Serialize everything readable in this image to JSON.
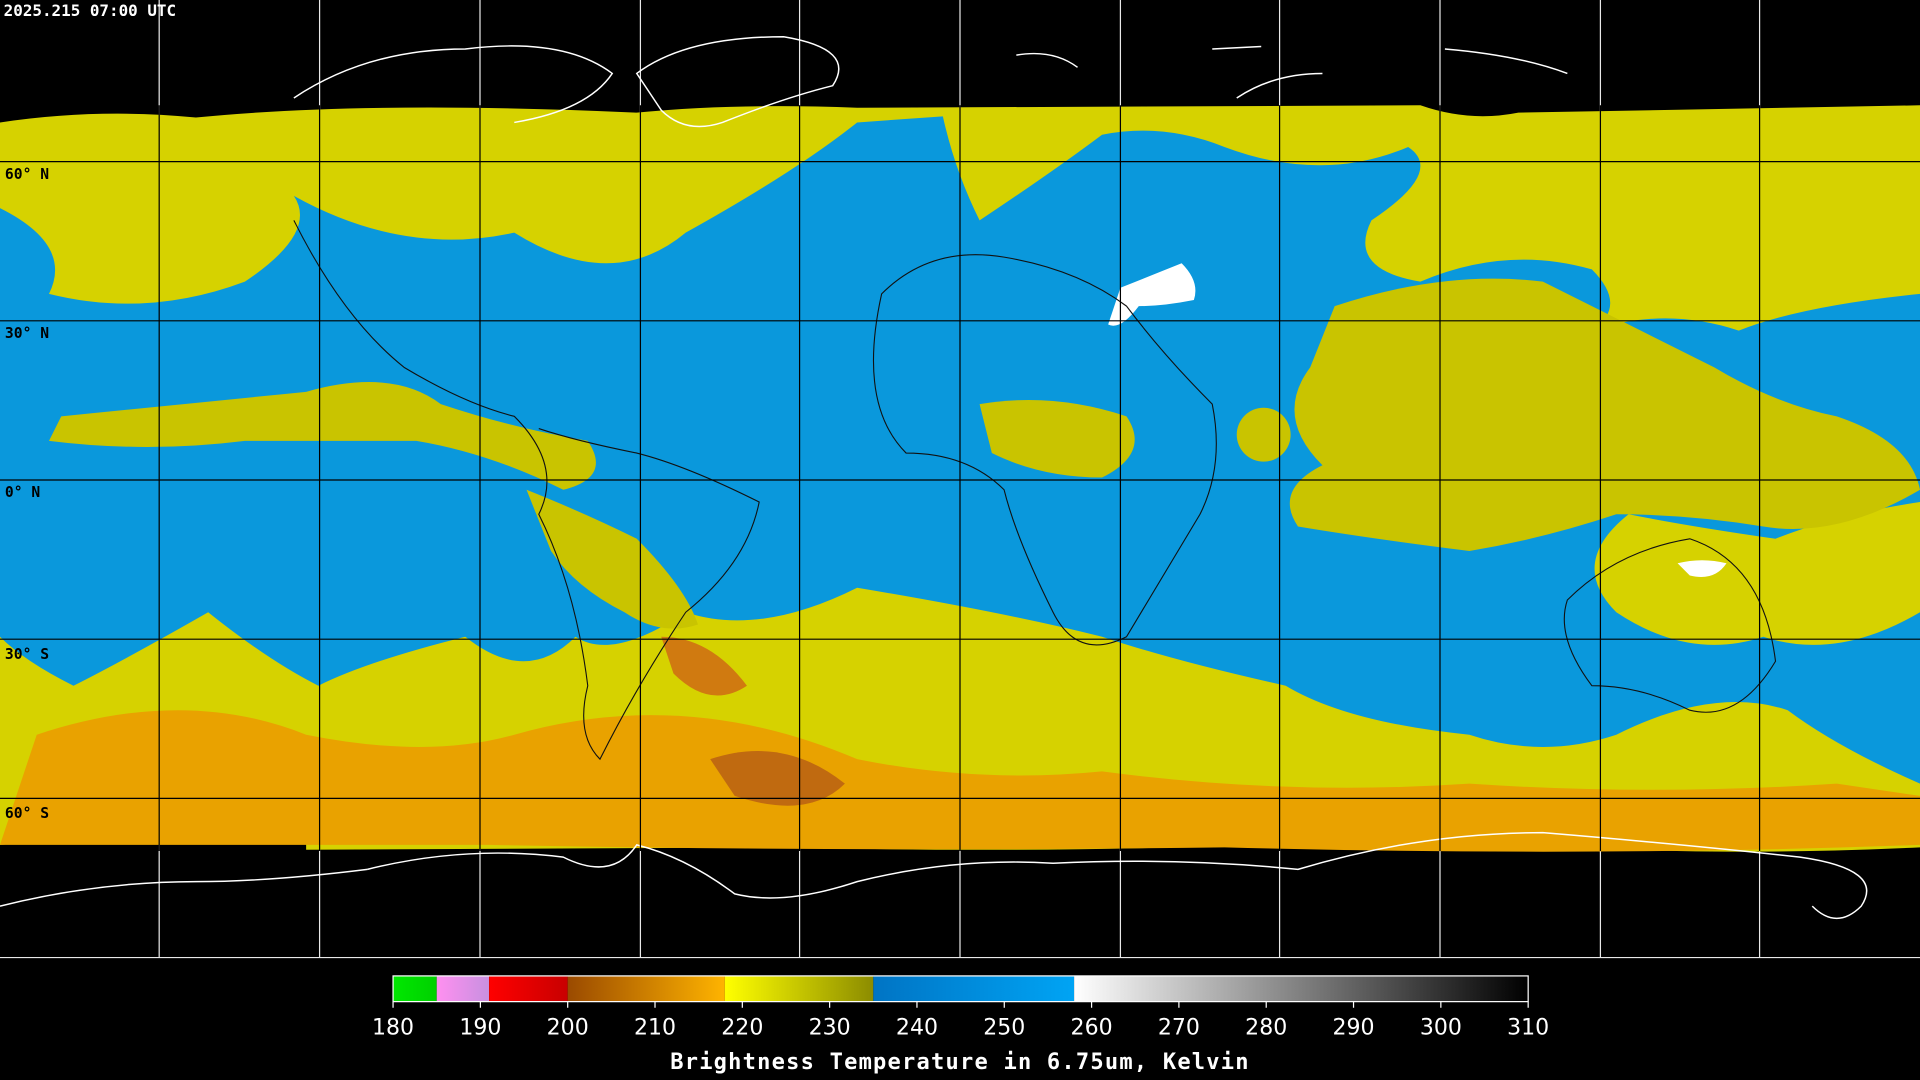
{
  "header": {
    "timestamp": "2025.215 07:00 UTC"
  },
  "map": {
    "lat_labels": [
      "60° N",
      "30° N",
      "0° N",
      "30° S",
      "60° S"
    ]
  },
  "colorbar": {
    "title": "Brightness Temperature in 6.75um, Kelvin",
    "range": [
      180,
      310
    ],
    "ticks": [
      180,
      190,
      200,
      210,
      220,
      230,
      240,
      250,
      260,
      270,
      280,
      290,
      300,
      310
    ],
    "segments": [
      {
        "from": 180,
        "to": 185,
        "color_start": "#00e800",
        "color_end": "#00d000"
      },
      {
        "from": 185,
        "to": 191,
        "color_start": "#ff90f0",
        "color_end": "#c890e0"
      },
      {
        "from": 191,
        "to": 200,
        "color_start": "#ff0000",
        "color_end": "#c80000"
      },
      {
        "from": 200,
        "to": 218,
        "color_start": "#9a4a00",
        "color_end": "#ffb400"
      },
      {
        "from": 218,
        "to": 235,
        "color_start": "#ffff00",
        "color_end": "#8c8c00"
      },
      {
        "from": 235,
        "to": 258,
        "color_start": "#0074c4",
        "color_end": "#00a4f4"
      },
      {
        "from": 258,
        "to": 310,
        "color_start": "#ffffff",
        "color_end": "#000000"
      }
    ]
  }
}
